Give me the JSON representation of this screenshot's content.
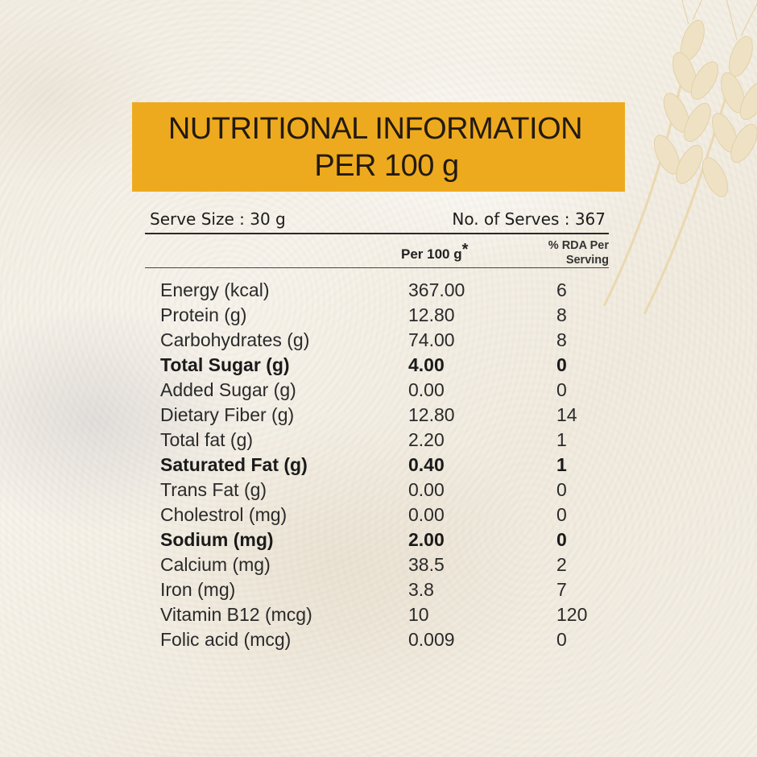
{
  "header": {
    "line1": "NUTRITIONAL INFORMATION",
    "line2": "PER 100 g"
  },
  "serve": {
    "size": "Serve Size : 30 g",
    "count": "No. of Serves : 367"
  },
  "columns": {
    "per100": "Per 100 g",
    "per100_mark": "*",
    "rda_line1": "% RDA Per",
    "rda_line2": "Serving"
  },
  "nutrients": [
    {
      "name": "Energy (kcal)",
      "per100": "367.00",
      "rda": "6",
      "bold": false
    },
    {
      "name": "Protein (g)",
      "per100": "12.80",
      "rda": "8",
      "bold": false
    },
    {
      "name": "Carbohydrates (g)",
      "per100": "74.00",
      "rda": "8",
      "bold": false
    },
    {
      "name": "Total Sugar (g)",
      "per100": "4.00",
      "rda": "0",
      "bold": true
    },
    {
      "name": "Added Sugar (g)",
      "per100": "0.00",
      "rda": "0",
      "bold": false
    },
    {
      "name": "Dietary Fiber (g)",
      "per100": "12.80",
      "rda": "14",
      "bold": false
    },
    {
      "name": "Total fat (g)",
      "per100": "2.20",
      "rda": "1",
      "bold": false
    },
    {
      "name": "Saturated Fat (g)",
      "per100": "0.40",
      "rda": "1",
      "bold": true
    },
    {
      "name": "Trans Fat (g)",
      "per100": "0.00",
      "rda": "0",
      "bold": false
    },
    {
      "name": "Cholestrol (mg)",
      "per100": "0.00",
      "rda": "0",
      "bold": false
    },
    {
      "name": "Sodium (mg)",
      "per100": "2.00",
      "rda": "0",
      "bold": true
    },
    {
      "name": "Calcium (mg)",
      "per100": "38.5",
      "rda": "2",
      "bold": false
    },
    {
      "name": "Iron (mg)",
      "per100": "3.8",
      "rda": "7",
      "bold": false
    },
    {
      "name": "Vitamin B12 (mcg)",
      "per100": "10",
      "rda": "120",
      "bold": false
    },
    {
      "name": "Folic acid (mcg)",
      "per100": "0.009",
      "rda": "0",
      "bold": false
    }
  ],
  "colors": {
    "header_bg": "#eeaa1e",
    "text": "#2a2a2a"
  }
}
